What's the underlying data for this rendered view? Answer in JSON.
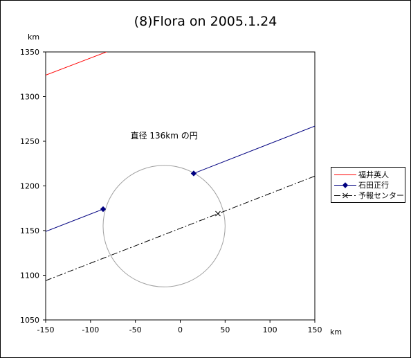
{
  "chart_data": {
    "type": "line",
    "title": "(8)Flora on 2005.1.24",
    "xlabel": "km",
    "ylabel": "km",
    "xlim": [
      -150,
      150
    ],
    "ylim": [
      1050,
      1350
    ],
    "x_ticks": [
      "-150",
      "-100",
      "-50",
      "0",
      "50",
      "100",
      "150"
    ],
    "y_ticks": [
      "1050",
      "1100",
      "1150",
      "1200",
      "1250",
      "1300",
      "1350"
    ],
    "grid": false,
    "legend_position": "right",
    "series": [
      {
        "name": "福井英人",
        "color": "#ff0000",
        "style": "solid",
        "marker": "none",
        "points": [
          [
            -150,
            1324
          ],
          [
            -77,
            1352
          ]
        ]
      },
      {
        "name": "石田正行",
        "color": "#000080",
        "style": "solid",
        "marker": "diamond",
        "segments": [
          [
            [
              -150,
              1149
            ],
            [
              -86,
              1174
            ]
          ],
          [
            [
              15,
              1214
            ],
            [
              150,
              1267
            ]
          ]
        ],
        "marked_points": [
          [
            -86,
            1174
          ],
          [
            15,
            1214
          ]
        ]
      },
      {
        "name": "予報センター",
        "color": "#000000",
        "style": "dashdot",
        "marker": "x",
        "points": [
          [
            -150,
            1094
          ],
          [
            150,
            1211
          ]
        ],
        "marked_points": [
          [
            42,
            1169
          ]
        ]
      }
    ],
    "circle": {
      "center": [
        -18,
        1155
      ],
      "diameter_km": 136,
      "color": "#a0a0a0"
    },
    "annotations": [
      {
        "text": "直径 136km の円",
        "x": -18,
        "y": 1253
      }
    ]
  }
}
